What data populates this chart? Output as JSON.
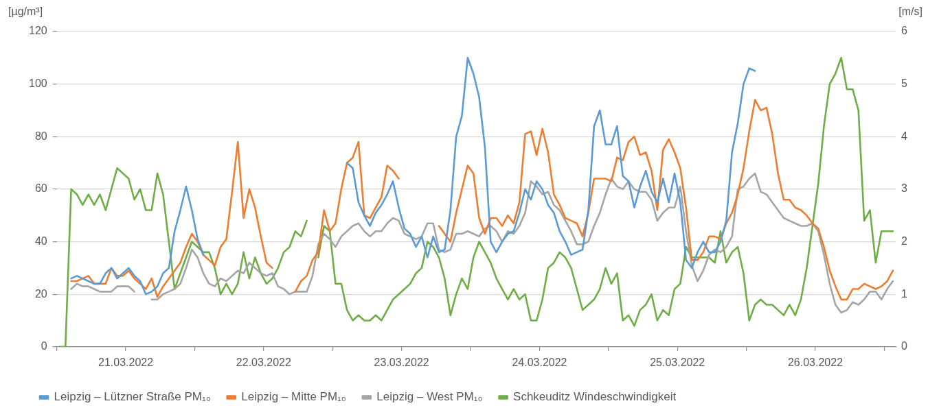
{
  "chart_data": {
    "type": "line",
    "ylabel": "[µg/m³]",
    "y2label": "[m/s]",
    "x": [
      "2022-03-21T00:30",
      "2022-03-21T01:30",
      "2022-03-21T02:30",
      "2022-03-21T03:30",
      "2022-03-21T04:30",
      "2022-03-21T05:30",
      "2022-03-21T06:30",
      "2022-03-21T07:30",
      "2022-03-21T08:30",
      "2022-03-21T09:30",
      "2022-03-21T10:30",
      "2022-03-21T11:30",
      "2022-03-21T12:30",
      "2022-03-21T13:30",
      "2022-03-21T14:30",
      "2022-03-21T15:30",
      "2022-03-21T16:30",
      "2022-03-21T17:30",
      "2022-03-21T18:30",
      "2022-03-21T19:30",
      "2022-03-21T20:30",
      "2022-03-21T21:30",
      "2022-03-21T22:30",
      "2022-03-21T23:30",
      "2022-03-22T00:30",
      "2022-03-22T01:30",
      "2022-03-22T02:30",
      "2022-03-22T03:30",
      "2022-03-22T04:30",
      "2022-03-22T05:30",
      "2022-03-22T06:30",
      "2022-03-22T07:30",
      "2022-03-22T08:30",
      "2022-03-22T09:30",
      "2022-03-22T10:30",
      "2022-03-22T11:30",
      "2022-03-22T12:30",
      "2022-03-22T13:30",
      "2022-03-22T14:30",
      "2022-03-22T15:30",
      "2022-03-22T16:30",
      "2022-03-22T17:30",
      "2022-03-22T18:30",
      "2022-03-22T19:30",
      "2022-03-22T20:30",
      "2022-03-22T21:30",
      "2022-03-22T22:30",
      "2022-03-22T23:30",
      "2022-03-23T00:30",
      "2022-03-23T01:30",
      "2022-03-23T02:30",
      "2022-03-23T03:30",
      "2022-03-23T04:30",
      "2022-03-23T05:30",
      "2022-03-23T06:30",
      "2022-03-23T07:30",
      "2022-03-23T08:30",
      "2022-03-23T09:30",
      "2022-03-23T10:30",
      "2022-03-23T11:30",
      "2022-03-23T12:30",
      "2022-03-23T13:30",
      "2022-03-23T14:30",
      "2022-03-23T15:30",
      "2022-03-23T16:30",
      "2022-03-23T17:30",
      "2022-03-23T18:30",
      "2022-03-23T19:30",
      "2022-03-23T20:30",
      "2022-03-23T21:30",
      "2022-03-23T22:30",
      "2022-03-23T23:30",
      "2022-03-24T00:30",
      "2022-03-24T01:30",
      "2022-03-24T02:30",
      "2022-03-24T03:30",
      "2022-03-24T04:30",
      "2022-03-24T05:30",
      "2022-03-24T06:30",
      "2022-03-24T07:30",
      "2022-03-24T08:30",
      "2022-03-24T09:30",
      "2022-03-24T10:30",
      "2022-03-24T11:30",
      "2022-03-24T12:30",
      "2022-03-24T13:30",
      "2022-03-24T14:30",
      "2022-03-24T15:30",
      "2022-03-24T16:30",
      "2022-03-24T17:30",
      "2022-03-24T18:30",
      "2022-03-24T19:30",
      "2022-03-24T20:30",
      "2022-03-24T21:30",
      "2022-03-24T22:30",
      "2022-03-24T23:30",
      "2022-03-25T00:30",
      "2022-03-25T01:30",
      "2022-03-25T02:30",
      "2022-03-25T03:30",
      "2022-03-25T04:30",
      "2022-03-25T05:30",
      "2022-03-25T06:30",
      "2022-03-25T07:30",
      "2022-03-25T08:30",
      "2022-03-25T09:30",
      "2022-03-25T10:30",
      "2022-03-25T11:30",
      "2022-03-25T12:30",
      "2022-03-25T13:30",
      "2022-03-25T14:30",
      "2022-03-25T15:30",
      "2022-03-25T16:30",
      "2022-03-25T17:30",
      "2022-03-25T18:30",
      "2022-03-25T19:30",
      "2022-03-25T20:30",
      "2022-03-25T21:30",
      "2022-03-25T22:30",
      "2022-03-25T23:30",
      "2022-03-26T00:30",
      "2022-03-26T01:30",
      "2022-03-26T02:30",
      "2022-03-26T03:30",
      "2022-03-26T04:30",
      "2022-03-26T05:30",
      "2022-03-26T06:30",
      "2022-03-26T07:30",
      "2022-03-26T08:30",
      "2022-03-26T09:30",
      "2022-03-26T10:30",
      "2022-03-26T11:30",
      "2022-03-26T12:30",
      "2022-03-26T13:30",
      "2022-03-26T14:30",
      "2022-03-26T15:30",
      "2022-03-26T16:30",
      "2022-03-26T17:30",
      "2022-03-26T18:30",
      "2022-03-26T19:30",
      "2022-03-26T20:30",
      "2022-03-26T21:30",
      "2022-03-26T22:30",
      "2022-03-26T23:30",
      "2022-03-27T00:30",
      "2022-03-27T01:30"
    ],
    "series": [
      {
        "name": "Leipzig – Lützner Straße PM₁₀",
        "color": "#5b9bd5",
        "values": [
          null,
          null,
          26,
          27,
          26,
          25,
          24,
          24,
          28,
          30,
          26,
          28,
          30,
          27,
          25,
          20,
          21,
          23,
          28,
          30,
          44,
          52,
          61,
          52,
          41,
          35,
          null,
          null,
          null,
          null,
          null,
          null,
          null,
          null,
          null,
          null,
          null,
          null,
          null,
          null,
          null,
          null,
          null,
          null,
          null,
          null,
          null,
          null,
          null,
          null,
          70,
          68,
          55,
          50,
          46,
          51,
          54,
          58,
          63,
          53,
          45,
          43,
          38,
          42,
          34,
          42,
          36,
          37,
          52,
          80,
          88,
          110,
          104,
          95,
          76,
          40,
          36,
          40,
          43,
          44,
          51,
          60,
          56,
          63,
          60,
          54,
          51,
          44,
          40,
          35,
          36,
          37,
          52,
          84,
          90,
          77,
          77,
          84,
          65,
          63,
          53,
          61,
          67,
          59,
          55,
          64,
          55,
          66,
          55,
          33,
          30,
          36,
          40,
          36,
          36,
          40,
          48,
          74,
          85,
          100,
          106,
          105,
          null,
          null,
          null,
          null,
          null,
          null,
          null,
          null,
          null,
          null,
          null,
          null,
          null,
          null,
          null,
          null,
          null,
          null,
          null,
          null,
          null,
          null,
          null,
          null
        ]
      },
      {
        "name": "Leipzig – Mitte PM₁₀",
        "color": "#ed7d31",
        "values": [
          null,
          null,
          25,
          25,
          26,
          27,
          24,
          24,
          24,
          30,
          27,
          27,
          29,
          26,
          24,
          22,
          26,
          19,
          23,
          26,
          29,
          32,
          38,
          43,
          40,
          35,
          33,
          31,
          38,
          41,
          59,
          78,
          49,
          60,
          53,
          42,
          32,
          30,
          null,
          null,
          null,
          21,
          25,
          27,
          33,
          36,
          52,
          44,
          47,
          60,
          70,
          72,
          78,
          50,
          49,
          53,
          57,
          69,
          67,
          64,
          null,
          null,
          null,
          null,
          null,
          null,
          46,
          43,
          40,
          51,
          60,
          69,
          66,
          49,
          43,
          49,
          49,
          46,
          50,
          47,
          55,
          81,
          82,
          73,
          83,
          74,
          58,
          54,
          49,
          48,
          47,
          42,
          51,
          64,
          64,
          64,
          63,
          72,
          71,
          78,
          80,
          73,
          74,
          67,
          52,
          75,
          79,
          74,
          68,
          53,
          33,
          33,
          36,
          42,
          42,
          41,
          47,
          51,
          58,
          68,
          82,
          94,
          90,
          91,
          81,
          66,
          56,
          56,
          53,
          52,
          50,
          47,
          45,
          38,
          29,
          23,
          18,
          18,
          22,
          22,
          24,
          23,
          22,
          23,
          25,
          29
        ]
      },
      {
        "name": "Leipzig – West PM₁₀",
        "color": "#a5a5a5",
        "values": [
          null,
          null,
          22,
          24,
          23,
          23,
          22,
          21,
          21,
          21,
          23,
          23,
          23,
          21,
          null,
          null,
          18,
          18,
          20,
          21,
          22,
          24,
          30,
          37,
          34,
          28,
          24,
          23,
          26,
          25,
          27,
          29,
          28,
          32,
          30,
          28,
          27,
          28,
          23,
          22,
          20,
          21,
          21,
          21,
          27,
          39,
          43,
          41,
          38,
          42,
          44,
          46,
          47,
          44,
          42,
          44,
          44,
          47,
          49,
          48,
          43,
          42,
          41,
          42,
          47,
          47,
          37,
          36,
          37,
          43,
          43,
          44,
          43,
          42,
          45,
          46,
          44,
          40,
          44,
          43,
          46,
          51,
          63,
          61,
          58,
          59,
          54,
          52,
          48,
          44,
          39,
          39,
          40,
          46,
          51,
          58,
          64,
          61,
          60,
          63,
          60,
          59,
          59,
          56,
          48,
          51,
          53,
          53,
          61,
          44,
          31,
          25,
          29,
          35,
          37,
          36,
          38,
          42,
          60,
          61,
          64,
          66,
          59,
          58,
          55,
          52,
          49,
          48,
          47,
          46,
          46,
          47,
          44,
          35,
          24,
          16,
          13,
          14,
          17,
          16,
          18,
          21,
          21,
          18,
          22,
          25
        ]
      },
      {
        "name": "Schkeuditz Windeschwindigkeit",
        "color": "#70ad47",
        "axis": "y2",
        "values": [
          0,
          0,
          3.0,
          2.9,
          2.7,
          2.9,
          2.7,
          2.9,
          2.6,
          3.0,
          3.4,
          3.3,
          3.2,
          2.8,
          3.0,
          2.6,
          2.6,
          3.3,
          2.9,
          2.0,
          1.1,
          1.4,
          1.7,
          2.0,
          1.9,
          1.8,
          1.8,
          1.5,
          1.0,
          1.2,
          1.0,
          1.2,
          1.8,
          1.3,
          1.7,
          1.4,
          1.2,
          1.3,
          1.5,
          1.8,
          1.9,
          2.2,
          2.1,
          2.4,
          null,
          1.7,
          2.3,
          2.2,
          1.2,
          1.2,
          0.7,
          0.5,
          0.6,
          0.5,
          0.5,
          0.6,
          0.5,
          0.7,
          0.9,
          1.0,
          1.1,
          1.2,
          1.4,
          1.5,
          2.0,
          1.9,
          1.7,
          1.3,
          0.6,
          1.0,
          1.3,
          1.1,
          1.7,
          2.0,
          1.8,
          1.6,
          1.3,
          1.1,
          0.9,
          1.1,
          0.9,
          1.0,
          0.5,
          0.5,
          0.9,
          1.5,
          1.6,
          1.8,
          1.7,
          1.5,
          1.1,
          0.7,
          0.8,
          0.9,
          1.1,
          1.5,
          1.2,
          1.4,
          0.5,
          0.6,
          0.4,
          0.7,
          0.8,
          1.0,
          0.5,
          0.7,
          0.6,
          1.1,
          1.2,
          1.9,
          1.7,
          1.7,
          1.7,
          1.7,
          1.6,
          2.2,
          1.6,
          1.8,
          1.9,
          1.4,
          0.5,
          0.8,
          0.9,
          0.8,
          0.8,
          0.7,
          0.6,
          0.8,
          0.6,
          0.9,
          1.5,
          2.3,
          3.1,
          4.2,
          5.0,
          5.2,
          5.5,
          4.9,
          4.9,
          4.5,
          2.4,
          2.6,
          1.6,
          2.2,
          2.2,
          2.2
        ]
      }
    ],
    "xlim": [
      "2022-03-21T00:00",
      "2022-03-27T02:00"
    ],
    "xticks": [
      {
        "value": "2022-03-21T00:00",
        "label": null
      },
      {
        "value": "2022-03-21T12:00",
        "label": "21.03.2022"
      },
      {
        "value": "2022-03-22T00:00",
        "label": null
      },
      {
        "value": "2022-03-22T12:00",
        "label": "22.03.2022"
      },
      {
        "value": "2022-03-23T00:00",
        "label": null
      },
      {
        "value": "2022-03-23T12:00",
        "label": "23.03.2022"
      },
      {
        "value": "2022-03-24T00:00",
        "label": null
      },
      {
        "value": "2022-03-24T12:00",
        "label": "24.03.2022"
      },
      {
        "value": "2022-03-25T00:00",
        "label": null
      },
      {
        "value": "2022-03-25T12:00",
        "label": "25.03.2022"
      },
      {
        "value": "2022-03-26T00:00",
        "label": null
      },
      {
        "value": "2022-03-26T12:00",
        "label": "26.03.2022"
      },
      {
        "value": "2022-03-27T00:00",
        "label": null
      }
    ],
    "ylim": [
      0,
      120
    ],
    "yticks": [
      0,
      20,
      40,
      60,
      80,
      100,
      120
    ],
    "y2lim": [
      0,
      6
    ],
    "y2ticks": [
      0,
      1,
      2,
      3,
      4,
      5,
      6
    ],
    "grid": "y",
    "legend": "bottom",
    "marker": "none",
    "line_style": "solid"
  }
}
